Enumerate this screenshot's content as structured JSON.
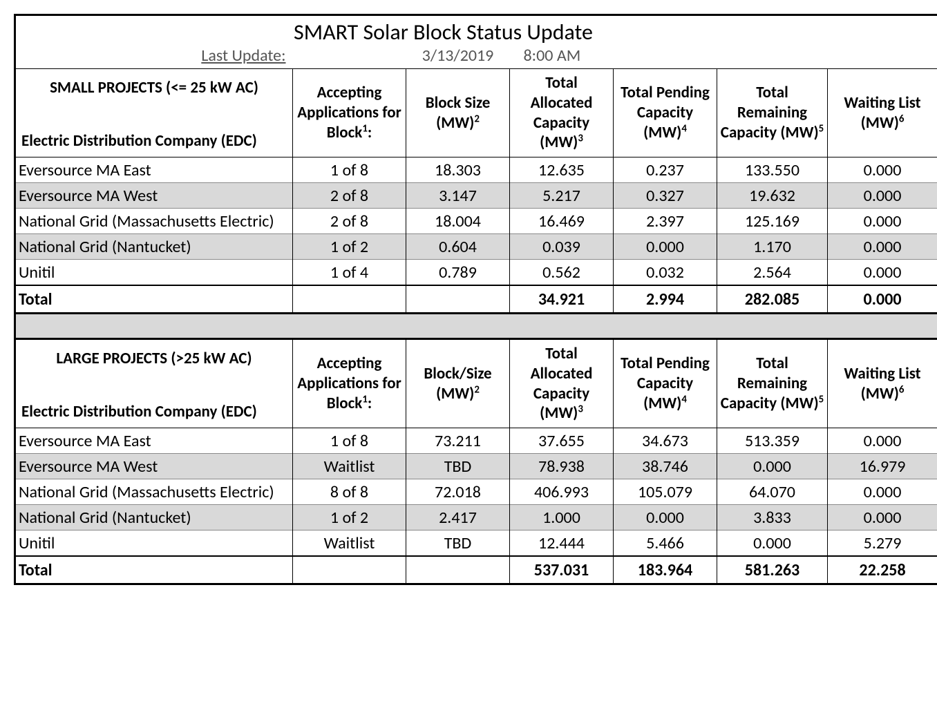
{
  "title": "SMART Solar Block Status Update",
  "last_update_label": "Last Update:",
  "last_update_date": "3/13/2019",
  "last_update_time": "8:00 AM",
  "colors": {
    "background": "#ffffff",
    "text": "#000000",
    "muted_text": "#555555",
    "shade": "#d9d9d9",
    "border_heavy": "#000000",
    "border_light": "#8a8a8a"
  },
  "typography": {
    "font_family": "Calibri",
    "title_size_pt": 24,
    "header_size_pt": 17,
    "body_size_pt": 18
  },
  "columns": {
    "edc_label": "Electric Distribution Company (EDC)",
    "accepting_html": "Accepting Applications for Block<sup>1</sup>:",
    "block_size_html": "Block Size (MW)<sup>2</sup>",
    "block_slash_size_html": "Block/Size (MW)<sup>2</sup>",
    "allocated_html": "Total Allocated Capacity (MW)<sup>3</sup>",
    "pending_html": "Total Pending Capacity (MW)<sup>4</sup>",
    "remaining_html": "Total Remaining Capacity (MW)<sup>5</sup>",
    "waiting_html": "Waiting List (MW)<sup>6</sup>"
  },
  "sections": [
    {
      "heading": "SMALL PROJECTS (<= 25 kW AC)",
      "block_col_key": "block_size_html",
      "rows": [
        {
          "edc": "Eversource MA East",
          "block": "1 of 8",
          "size": "18.303",
          "alloc": "12.635",
          "pend": "0.237",
          "remain": "133.550",
          "wait": "0.000",
          "shade": false
        },
        {
          "edc": "Eversource MA West",
          "block": "2 of 8",
          "size": "3.147",
          "alloc": "5.217",
          "pend": "0.327",
          "remain": "19.632",
          "wait": "0.000",
          "shade": true
        },
        {
          "edc": "National Grid (Massachusetts Electric)",
          "block": "2 of 8",
          "size": "18.004",
          "alloc": "16.469",
          "pend": "2.397",
          "remain": "125.169",
          "wait": "0.000",
          "shade": false
        },
        {
          "edc": "National Grid (Nantucket)",
          "block": "1 of 2",
          "size": "0.604",
          "alloc": "0.039",
          "pend": "0.000",
          "remain": "1.170",
          "wait": "0.000",
          "shade": true
        },
        {
          "edc": "Unitil",
          "block": "1 of 4",
          "size": "0.789",
          "alloc": "0.562",
          "pend": "0.032",
          "remain": "2.564",
          "wait": "0.000",
          "shade": false
        }
      ],
      "total": {
        "label": "Total",
        "alloc": "34.921",
        "pend": "2.994",
        "remain": "282.085",
        "wait": "0.000"
      }
    },
    {
      "heading": "LARGE PROJECTS (>25 kW AC)",
      "block_col_key": "block_slash_size_html",
      "rows": [
        {
          "edc": "Eversource MA East",
          "block": "1 of 8",
          "size": "73.211",
          "alloc": "37.655",
          "pend": "34.673",
          "remain": "513.359",
          "wait": "0.000",
          "shade": false
        },
        {
          "edc": "Eversource MA West",
          "block": "Waitlist",
          "size": "TBD",
          "alloc": "78.938",
          "pend": "38.746",
          "remain": "0.000",
          "wait": "16.979",
          "shade": true
        },
        {
          "edc": "National Grid (Massachusetts Electric)",
          "block": "8 of 8",
          "size": "72.018",
          "alloc": "406.993",
          "pend": "105.079",
          "remain": "64.070",
          "wait": "0.000",
          "shade": false
        },
        {
          "edc": "National Grid (Nantucket)",
          "block": "1 of 2",
          "size": "2.417",
          "alloc": "1.000",
          "pend": "0.000",
          "remain": "3.833",
          "wait": "0.000",
          "shade": true
        },
        {
          "edc": "Unitil",
          "block": "Waitlist",
          "size": "TBD",
          "alloc": "12.444",
          "pend": "5.466",
          "remain": "0.000",
          "wait": "5.279",
          "shade": false
        }
      ],
      "total": {
        "label": "Total",
        "alloc": "537.031",
        "pend": "183.964",
        "remain": "581.263",
        "wait": "22.258"
      }
    }
  ]
}
